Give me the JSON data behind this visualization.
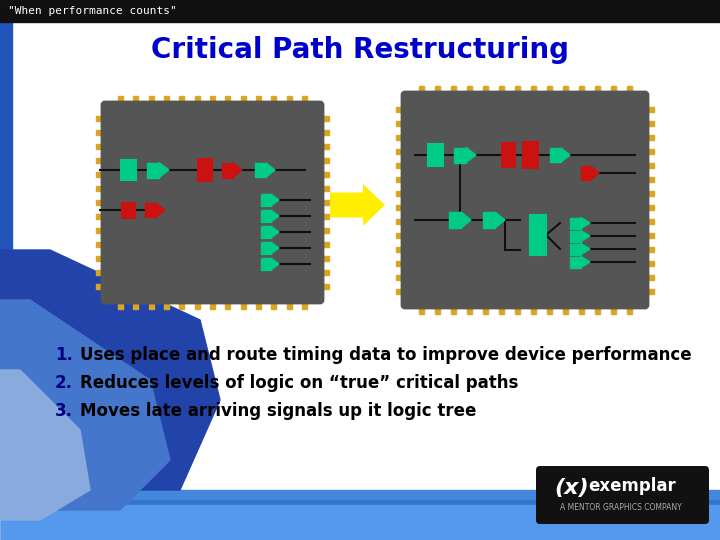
{
  "title": "Critical Path Restructuring",
  "title_color": "#0000CC",
  "title_fontsize": 20,
  "top_bar_text": "\"When performance counts\"",
  "top_bar_text_color": "#FFFFFF",
  "bullet_items": [
    "Uses place and route timing data to improve device performance",
    "Reduces levels of logic on “true” critical paths",
    "Moves late arriving signals up it logic tree"
  ],
  "bullet_color": "#000080",
  "bullet_text_color": "#000000",
  "bullet_fontsize": 12,
  "chip_bg": "#555555",
  "pin_color": "#DAA520",
  "gate_green": "#00CC88",
  "gate_red": "#CC1111",
  "arrow_color": "#FFEE00"
}
